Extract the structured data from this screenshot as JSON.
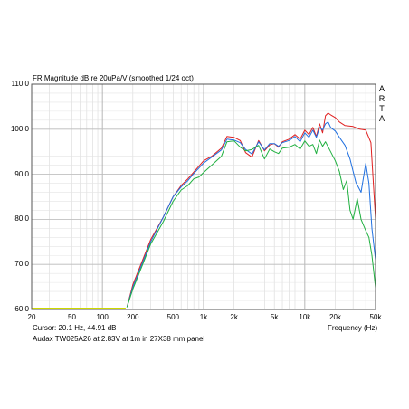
{
  "chart_data": {
    "type": "line",
    "title": "FR Magnitude dB re 20uPa/V (smoothed 1/24 oct)",
    "xlabel": "Frequency (Hz)",
    "ylabel": "",
    "x_scale": "log",
    "xlim": [
      20,
      50000
    ],
    "ylim": [
      60,
      110
    ],
    "grid": true,
    "x_ticks": [
      {
        "value": 20,
        "label": "20"
      },
      {
        "value": 50,
        "label": "50"
      },
      {
        "value": 100,
        "label": "100"
      },
      {
        "value": 200,
        "label": "200"
      },
      {
        "value": 500,
        "label": "500"
      },
      {
        "value": 1000,
        "label": "1k"
      },
      {
        "value": 2000,
        "label": "2k"
      },
      {
        "value": 5000,
        "label": "5k"
      },
      {
        "value": 10000,
        "label": "10k"
      },
      {
        "value": 20000,
        "label": "20k"
      },
      {
        "value": 50000,
        "label": "50k"
      }
    ],
    "y_ticks": [
      {
        "value": 110,
        "label": "110.0"
      },
      {
        "value": 100,
        "label": "100.0"
      },
      {
        "value": 90,
        "label": "90.0"
      },
      {
        "value": 80,
        "label": "80.0"
      },
      {
        "value": 70,
        "label": "70.0"
      },
      {
        "value": 60,
        "label": "60.0"
      }
    ],
    "baseline": {
      "color": "#ccd800",
      "x": [
        20,
        100,
        170
      ],
      "y": [
        60.3,
        60.3,
        60.3
      ]
    },
    "series": [
      {
        "color": "#e02020",
        "x": [
          175,
          200,
          250,
          300,
          400,
          500,
          600,
          700,
          800,
          900,
          1000,
          1200,
          1500,
          1700,
          2000,
          2300,
          2600,
          3000,
          3500,
          4000,
          4500,
          5000,
          5500,
          6000,
          7000,
          8000,
          9000,
          10000,
          11000,
          12000,
          13000,
          14000,
          15000,
          16000,
          17000,
          18000,
          20000,
          22000,
          25000,
          30000,
          35000,
          40000,
          45000,
          50000
        ],
        "y": [
          60.5,
          65.5,
          71,
          75.5,
          80.5,
          85,
          87.5,
          89,
          90.5,
          91.8,
          93,
          94,
          95.8,
          98.4,
          98.2,
          97.5,
          94.8,
          93.8,
          97.5,
          95.2,
          96.5,
          96.8,
          96,
          97.2,
          97.8,
          98.8,
          97.8,
          99.8,
          98.8,
          100.4,
          98.4,
          101.2,
          99.2,
          103,
          103.6,
          103.2,
          102.6,
          101.6,
          100.8,
          100.6,
          100,
          99.8,
          97,
          80
        ]
      },
      {
        "color": "#2070e0",
        "x": [
          175,
          200,
          250,
          300,
          400,
          500,
          600,
          700,
          800,
          900,
          1000,
          1200,
          1500,
          1700,
          2000,
          2300,
          2600,
          3000,
          3500,
          4000,
          4500,
          5000,
          5500,
          6000,
          7000,
          8000,
          9000,
          10000,
          11000,
          12000,
          13000,
          14000,
          15000,
          16000,
          17000,
          18000,
          20000,
          22000,
          25000,
          28000,
          32000,
          36000,
          40000,
          43000,
          46000,
          50000
        ],
        "y": [
          60.5,
          65,
          70.5,
          75,
          80.5,
          85,
          87.2,
          88.6,
          90.2,
          91.4,
          92.5,
          93.8,
          95.4,
          97.8,
          97.6,
          97,
          95.5,
          94.5,
          97.2,
          95.4,
          96.8,
          96.8,
          96.2,
          97,
          97.5,
          98.4,
          97.2,
          99.2,
          98.2,
          99.8,
          98.2,
          100.4,
          99.8,
          101.2,
          101.6,
          100.4,
          99.6,
          98.2,
          96.4,
          93.4,
          88.2,
          86,
          92.4,
          88,
          78,
          71
        ]
      },
      {
        "color": "#20b040",
        "x": [
          175,
          200,
          250,
          300,
          400,
          500,
          600,
          700,
          800,
          900,
          1000,
          1200,
          1500,
          1700,
          2000,
          2300,
          2600,
          3000,
          3500,
          4000,
          4500,
          5000,
          5500,
          6000,
          7000,
          8000,
          9000,
          10000,
          11000,
          12000,
          13000,
          14000,
          15000,
          16000,
          18000,
          20000,
          22000,
          24000,
          26000,
          28000,
          30000,
          33000,
          36000,
          40000,
          43000,
          46000,
          50000
        ],
        "y": [
          60.5,
          64.5,
          70,
          74.5,
          79.5,
          84,
          86.5,
          87.5,
          89,
          89.4,
          90.4,
          92,
          94,
          97.2,
          97.4,
          96,
          95.2,
          95.5,
          96.4,
          93.4,
          95.6,
          95,
          94.6,
          95.8,
          96,
          96.6,
          95.6,
          97.4,
          96.2,
          96.6,
          94.6,
          97.6,
          96.2,
          97.2,
          95,
          93,
          90.6,
          86.6,
          88.6,
          82,
          80,
          84.6,
          80,
          77.5,
          76,
          72,
          64.8
        ]
      }
    ],
    "cursor_text": "Cursor: 20.1 Hz, 44.91 dB",
    "caption": "Audax TW025A26 at 2.83V at 1m in 27X38 mm panel",
    "watermark": [
      "A",
      "R",
      "T",
      "A"
    ]
  }
}
